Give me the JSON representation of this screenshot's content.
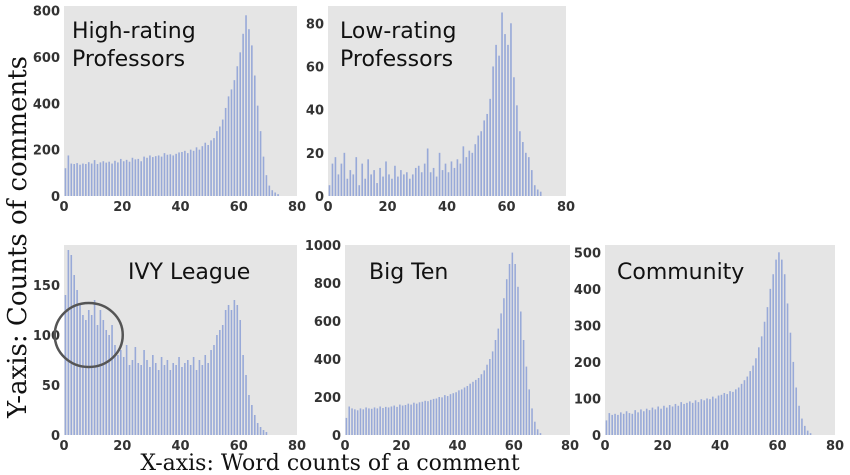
{
  "figure": {
    "y_axis_caption": "Y-axis: Counts of comments",
    "x_axis_caption": "X-axis: Word counts of a comment"
  },
  "colors": {
    "panel_bg": "#e5e5e5",
    "bar": "#98a9d8",
    "tick_text": "#333333",
    "annotation_circle": "#555555"
  },
  "chart_data": [
    {
      "type": "bar",
      "id": "high-rating",
      "title": "High-rating\nProfessors",
      "xlim": [
        0,
        80
      ],
      "ylim": [
        0,
        820
      ],
      "xticks": [
        0,
        20,
        40,
        60,
        80
      ],
      "yticks": [
        0,
        200,
        400,
        600,
        800
      ],
      "x": [
        0,
        1,
        2,
        3,
        4,
        5,
        6,
        7,
        8,
        9,
        10,
        11,
        12,
        13,
        14,
        15,
        16,
        17,
        18,
        19,
        20,
        21,
        22,
        23,
        24,
        25,
        26,
        27,
        28,
        29,
        30,
        31,
        32,
        33,
        34,
        35,
        36,
        37,
        38,
        39,
        40,
        41,
        42,
        43,
        44,
        45,
        46,
        47,
        48,
        49,
        50,
        51,
        52,
        53,
        54,
        55,
        56,
        57,
        58,
        59,
        60,
        61,
        62,
        63,
        64,
        65,
        66,
        67,
        68,
        69,
        70,
        71,
        72,
        73,
        74,
        75,
        76,
        77,
        78,
        79
      ],
      "values": [
        120,
        175,
        140,
        138,
        142,
        135,
        140,
        138,
        146,
        140,
        155,
        138,
        145,
        150,
        144,
        148,
        140,
        152,
        145,
        160,
        150,
        156,
        148,
        165,
        158,
        160,
        150,
        170,
        165,
        175,
        168,
        172,
        175,
        170,
        185,
        178,
        180,
        175,
        182,
        188,
        190,
        195,
        185,
        200,
        195,
        210,
        200,
        215,
        230,
        220,
        240,
        250,
        280,
        300,
        330,
        380,
        430,
        460,
        500,
        560,
        620,
        700,
        780,
        720,
        650,
        520,
        390,
        280,
        170,
        90,
        45,
        25,
        15,
        8,
        0,
        0,
        0,
        0,
        0,
        0
      ]
    },
    {
      "type": "bar",
      "id": "low-rating",
      "title": "Low-rating\nProfessors",
      "xlim": [
        0,
        80
      ],
      "ylim": [
        0,
        88
      ],
      "xticks": [
        0,
        20,
        40,
        60,
        80
      ],
      "yticks": [
        0,
        20,
        40,
        60,
        80
      ],
      "x": [
        0,
        1,
        2,
        3,
        4,
        5,
        6,
        7,
        8,
        9,
        10,
        11,
        12,
        13,
        14,
        15,
        16,
        17,
        18,
        19,
        20,
        21,
        22,
        23,
        24,
        25,
        26,
        27,
        28,
        29,
        30,
        31,
        32,
        33,
        34,
        35,
        36,
        37,
        38,
        39,
        40,
        41,
        42,
        43,
        44,
        45,
        46,
        47,
        48,
        49,
        50,
        51,
        52,
        53,
        54,
        55,
        56,
        57,
        58,
        59,
        60,
        61,
        62,
        63,
        64,
        65,
        66,
        67,
        68,
        69,
        70,
        71,
        72,
        73,
        74,
        75,
        76,
        77,
        78,
        79
      ],
      "values": [
        5,
        15,
        18,
        10,
        15,
        20,
        8,
        12,
        10,
        18,
        5,
        15,
        8,
        17,
        10,
        12,
        6,
        13,
        9,
        16,
        10,
        8,
        14,
        9,
        12,
        10,
        11,
        8,
        10,
        13,
        14,
        11,
        15,
        22,
        11,
        13,
        9,
        20,
        12,
        15,
        11,
        16,
        13,
        17,
        15,
        23,
        18,
        21,
        20,
        24,
        28,
        30,
        35,
        38,
        45,
        60,
        70,
        65,
        85,
        75,
        70,
        80,
        55,
        42,
        30,
        25,
        20,
        18,
        12,
        5,
        3,
        2,
        0,
        0,
        0,
        0,
        0,
        0,
        0,
        0
      ]
    },
    {
      "type": "bar",
      "id": "ivy-league",
      "title": "IVY League",
      "xlim": [
        0,
        80
      ],
      "ylim": [
        0,
        190
      ],
      "xticks": [
        0,
        20,
        40,
        60,
        80
      ],
      "yticks": [
        0,
        50,
        100,
        150
      ],
      "x": [
        0,
        1,
        2,
        3,
        4,
        5,
        6,
        7,
        8,
        9,
        10,
        11,
        12,
        13,
        14,
        15,
        16,
        17,
        18,
        19,
        20,
        21,
        22,
        23,
        24,
        25,
        26,
        27,
        28,
        29,
        30,
        31,
        32,
        33,
        34,
        35,
        36,
        37,
        38,
        39,
        40,
        41,
        42,
        43,
        44,
        45,
        46,
        47,
        48,
        49,
        50,
        51,
        52,
        53,
        54,
        55,
        56,
        57,
        58,
        59,
        60,
        61,
        62,
        63,
        64,
        65,
        66,
        67,
        68,
        69,
        70,
        71,
        72,
        73,
        74,
        75,
        76,
        77,
        78,
        79
      ],
      "values": [
        140,
        185,
        180,
        160,
        145,
        130,
        120,
        115,
        125,
        120,
        135,
        110,
        125,
        115,
        105,
        100,
        110,
        90,
        80,
        85,
        78,
        90,
        70,
        75,
        88,
        72,
        70,
        85,
        75,
        68,
        80,
        72,
        65,
        78,
        70,
        75,
        65,
        72,
        70,
        78,
        68,
        72,
        75,
        70,
        78,
        65,
        75,
        70,
        80,
        72,
        85,
        90,
        100,
        105,
        110,
        125,
        130,
        125,
        135,
        130,
        115,
        80,
        60,
        40,
        30,
        20,
        12,
        8,
        5,
        3,
        0,
        0,
        0,
        0,
        0,
        0,
        0,
        0,
        0,
        0
      ]
    },
    {
      "type": "bar",
      "id": "big-ten",
      "title": "Big Ten",
      "xlim": [
        0,
        80
      ],
      "ylim": [
        0,
        1000
      ],
      "xticks": [
        0,
        20,
        40,
        60,
        80
      ],
      "yticks": [
        0,
        200,
        400,
        600,
        800,
        1000
      ],
      "x": [
        0,
        1,
        2,
        3,
        4,
        5,
        6,
        7,
        8,
        9,
        10,
        11,
        12,
        13,
        14,
        15,
        16,
        17,
        18,
        19,
        20,
        21,
        22,
        23,
        24,
        25,
        26,
        27,
        28,
        29,
        30,
        31,
        32,
        33,
        34,
        35,
        36,
        37,
        38,
        39,
        40,
        41,
        42,
        43,
        44,
        45,
        46,
        47,
        48,
        49,
        50,
        51,
        52,
        53,
        54,
        55,
        56,
        57,
        58,
        59,
        60,
        61,
        62,
        63,
        64,
        65,
        66,
        67,
        68,
        69,
        70,
        71,
        72,
        73,
        74,
        75,
        76,
        77,
        78,
        79
      ],
      "values": [
        90,
        150,
        140,
        135,
        130,
        140,
        135,
        145,
        140,
        138,
        145,
        140,
        150,
        142,
        148,
        145,
        150,
        155,
        148,
        160,
        155,
        158,
        165,
        160,
        170,
        165,
        172,
        175,
        180,
        178,
        185,
        190,
        192,
        200,
        198,
        210,
        205,
        215,
        220,
        225,
        235,
        240,
        250,
        258,
        270,
        280,
        290,
        300,
        320,
        340,
        370,
        400,
        440,
        500,
        560,
        640,
        720,
        820,
        900,
        960,
        900,
        780,
        650,
        500,
        360,
        240,
        140,
        70,
        30,
        10,
        0,
        0,
        0,
        0,
        0,
        0,
        0,
        0,
        0,
        0
      ]
    },
    {
      "type": "bar",
      "id": "community",
      "title": "Community",
      "xlim": [
        0,
        80
      ],
      "ylim": [
        0,
        520
      ],
      "xticks": [
        0,
        20,
        40,
        60,
        80
      ],
      "yticks": [
        0,
        100,
        200,
        300,
        400,
        500
      ],
      "x": [
        0,
        1,
        2,
        3,
        4,
        5,
        6,
        7,
        8,
        9,
        10,
        11,
        12,
        13,
        14,
        15,
        16,
        17,
        18,
        19,
        20,
        21,
        22,
        23,
        24,
        25,
        26,
        27,
        28,
        29,
        30,
        31,
        32,
        33,
        34,
        35,
        36,
        37,
        38,
        39,
        40,
        41,
        42,
        43,
        44,
        45,
        46,
        47,
        48,
        49,
        50,
        51,
        52,
        53,
        54,
        55,
        56,
        57,
        58,
        59,
        60,
        61,
        62,
        63,
        64,
        65,
        66,
        67,
        68,
        69,
        70,
        71,
        72,
        73,
        74,
        75,
        76,
        77,
        78,
        79
      ],
      "values": [
        40,
        60,
        55,
        58,
        55,
        62,
        58,
        65,
        60,
        58,
        68,
        62,
        70,
        65,
        72,
        68,
        75,
        70,
        78,
        72,
        80,
        75,
        82,
        78,
        85,
        80,
        90,
        85,
        88,
        92,
        88,
        95,
        90,
        98,
        95,
        100,
        98,
        105,
        100,
        108,
        110,
        115,
        112,
        120,
        118,
        125,
        130,
        140,
        150,
        160,
        175,
        190,
        210,
        240,
        270,
        310,
        350,
        400,
        440,
        480,
        500,
        480,
        440,
        360,
        280,
        200,
        130,
        80,
        45,
        25,
        12,
        5,
        0,
        0,
        0,
        0,
        0,
        0,
        0,
        0
      ]
    }
  ]
}
